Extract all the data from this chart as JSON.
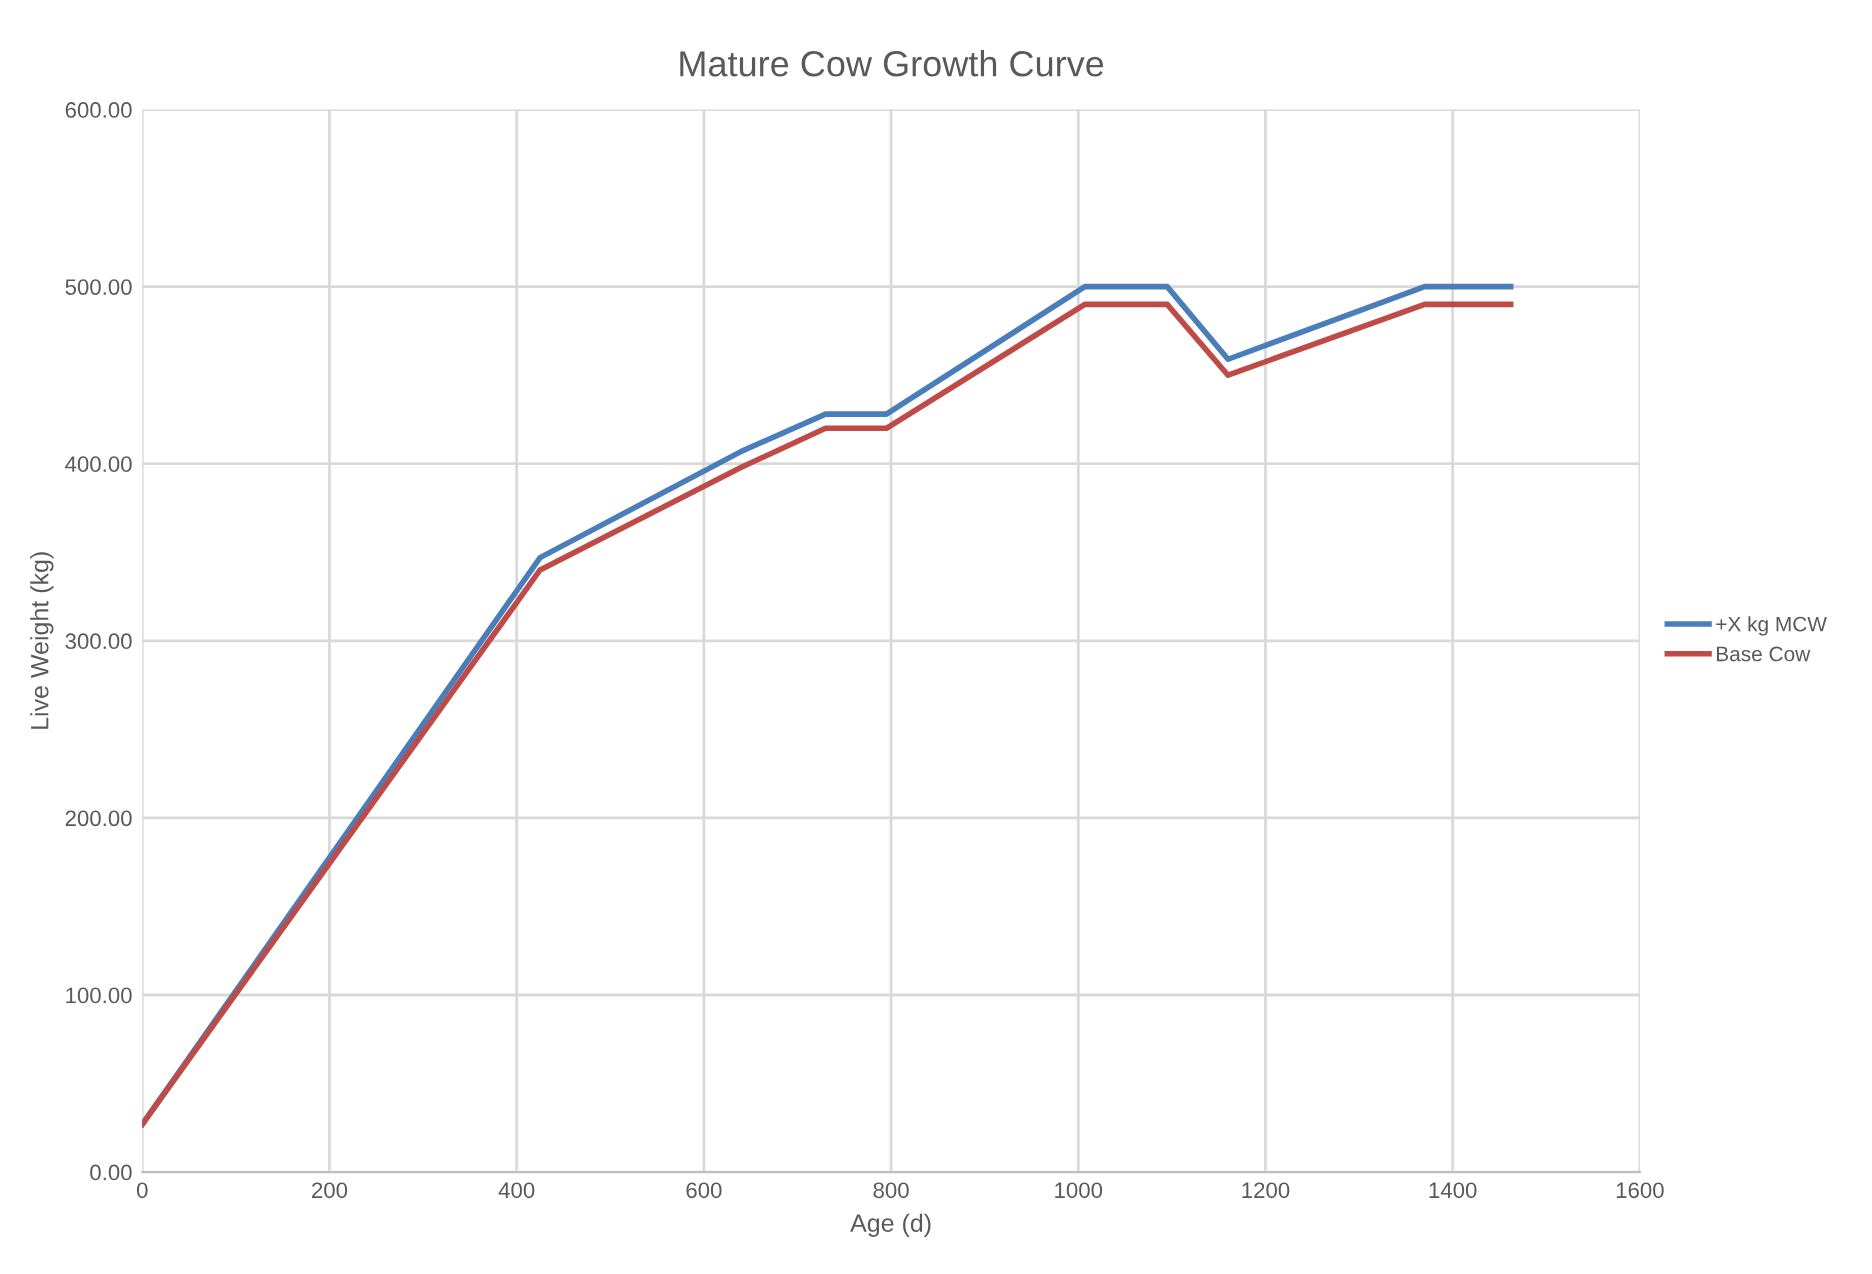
{
  "chart_data": {
    "type": "line",
    "title": "Mature Cow Growth Curve",
    "xlabel": "Age (d)",
    "ylabel": "Live Weight (kg)",
    "x": [
      0,
      425,
      640,
      730,
      795,
      1007,
      1095,
      1160,
      1370,
      1462
    ],
    "series": [
      {
        "name": "+X kg MCW",
        "color": "#4a7ebb",
        "values": [
          27,
          347,
          407,
          428,
          428,
          500,
          500,
          459,
          500,
          500
        ]
      },
      {
        "name": "Base Cow",
        "color": "#be4b48",
        "values": [
          27,
          340,
          398,
          420,
          420,
          490,
          490,
          450,
          490,
          490
        ]
      }
    ],
    "xlim": [
      0,
      1600
    ],
    "xticks": [
      0,
      200,
      400,
      600,
      800,
      1000,
      1200,
      1400,
      1600
    ],
    "ylim": [
      0,
      600
    ],
    "yticks": [
      {
        "value": 0,
        "label": "0.00"
      },
      {
        "value": 100,
        "label": "100.00"
      },
      {
        "value": 200,
        "label": "200.00"
      },
      {
        "value": 300,
        "label": "300.00"
      },
      {
        "value": 400,
        "label": "400.00"
      },
      {
        "value": 500,
        "label": "500.00"
      },
      {
        "value": 600,
        "label": "600.00"
      }
    ],
    "grid": true,
    "legend": "right",
    "marker": "none",
    "line_style": "solid"
  }
}
